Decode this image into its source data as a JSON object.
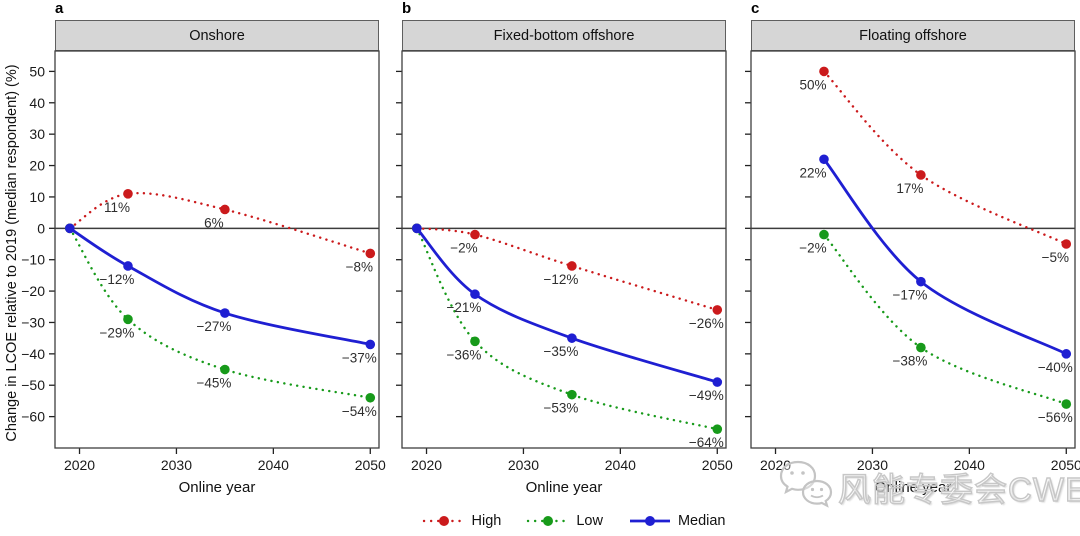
{
  "chart_data": {
    "type": "line",
    "ylabel": "Change in LCOE relative to 2019 (median respondent) (%)",
    "xlabel": "Online year",
    "xlim": [
      2017.47,
      2050.9
    ],
    "ylim": [
      -70,
      56.5
    ],
    "x_ticks": [
      2020,
      2030,
      2040,
      2050
    ],
    "y_ticks": [
      50,
      40,
      30,
      20,
      10,
      0,
      -10,
      -20,
      -30,
      -40,
      -50,
      -60
    ],
    "zero_line": 0,
    "grid": "off",
    "legend_position": "bottom-center",
    "legend": [
      {
        "name": "High",
        "color": "#cb1a1c",
        "style": "dotted"
      },
      {
        "name": "Low",
        "color": "#179a1a",
        "style": "dotted"
      },
      {
        "name": "Median",
        "color": "#1f1fd2",
        "style": "solid"
      }
    ],
    "panels": [
      {
        "letter": "a",
        "title": "Onshore",
        "series": [
          {
            "name": "High",
            "x": [
              2019,
              2025,
              2035,
              2050
            ],
            "y": [
              0,
              11,
              6,
              -8
            ],
            "labels": [
              null,
              "11%",
              "6%",
              "−8%"
            ]
          },
          {
            "name": "Low",
            "x": [
              2019,
              2025,
              2035,
              2050
            ],
            "y": [
              0,
              -29,
              -45,
              -54
            ],
            "labels": [
              null,
              "−29%",
              "−45%",
              "−54%"
            ]
          },
          {
            "name": "Median",
            "x": [
              2019,
              2025,
              2035,
              2050
            ],
            "y": [
              0,
              -12,
              -27,
              -37
            ],
            "labels": [
              null,
              "−12%",
              "−27%",
              "−37%"
            ]
          }
        ]
      },
      {
        "letter": "b",
        "title": "Fixed-bottom offshore",
        "series": [
          {
            "name": "High",
            "x": [
              2019,
              2025,
              2035,
              2050
            ],
            "y": [
              0,
              -2,
              -12,
              -26
            ],
            "labels": [
              null,
              "−2%",
              "−12%",
              "−26%"
            ]
          },
          {
            "name": "Low",
            "x": [
              2019,
              2025,
              2035,
              2050
            ],
            "y": [
              0,
              -36,
              -53,
              -64
            ],
            "labels": [
              null,
              "−36%",
              "−53%",
              "−64%"
            ]
          },
          {
            "name": "Median",
            "x": [
              2019,
              2025,
              2035,
              2050
            ],
            "y": [
              0,
              -21,
              -35,
              -49
            ],
            "labels": [
              null,
              "−21%",
              "−35%",
              "−49%"
            ]
          }
        ]
      },
      {
        "letter": "c",
        "title": "Floating offshore",
        "series": [
          {
            "name": "High",
            "x": [
              2025,
              2035,
              2050
            ],
            "y": [
              50,
              17,
              -5
            ],
            "labels": [
              "50%",
              "17%",
              "−5%"
            ]
          },
          {
            "name": "Low",
            "x": [
              2025,
              2035,
              2050
            ],
            "y": [
              -2,
              -38,
              -56
            ],
            "labels": [
              "−2%",
              "−38%",
              "−56%"
            ]
          },
          {
            "name": "Median",
            "x": [
              2025,
              2035,
              2050
            ],
            "y": [
              22,
              -17,
              -40
            ],
            "labels": [
              "22%",
              "−17%",
              "−40%"
            ]
          }
        ]
      }
    ]
  },
  "watermark": {
    "text": "风能专委会CWEA",
    "icon": "wechat-icon"
  },
  "colors": {
    "high": "#cb1a1c",
    "low": "#179a1a",
    "median": "#1f1fd2",
    "zero_line": "#3c3c3c",
    "panel_border": "#3f3f3f",
    "header_fill": "#d6d6d6",
    "label_text": "#2e2e2e"
  }
}
